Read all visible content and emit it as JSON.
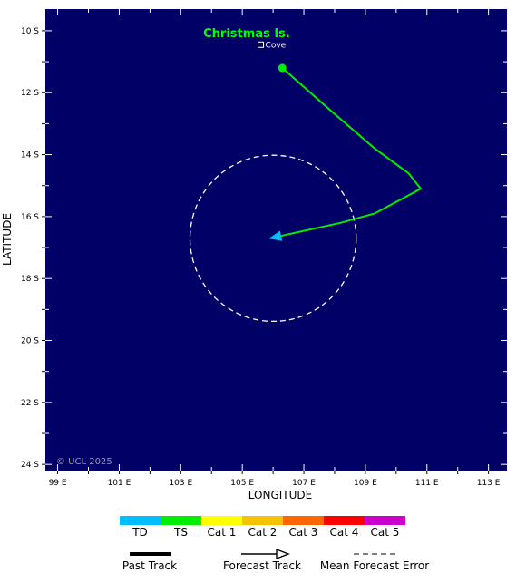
{
  "map": {
    "background_color": "#000066",
    "island_label": "Christmas Is.",
    "island_label_color": "#00ff00",
    "place_label": "Cove",
    "copyright": "© UCL 2025",
    "x_axis_label": "LONGITUDE",
    "y_axis_label": "LATITUDE",
    "lon_range": [
      98.6,
      113.6
    ],
    "lat_range": [
      -24.2,
      -9.3
    ],
    "lon_ticks": [
      "99 E",
      "101 E",
      "103 E",
      "105 E",
      "107 E",
      "109 E",
      "111 E",
      "113 E"
    ],
    "lat_ticks": [
      "10 S",
      "12 S",
      "14 S",
      "16 S",
      "18 S",
      "20 S",
      "22 S",
      "24 S"
    ],
    "place_marker": {
      "lon": 105.6,
      "lat": -10.45
    },
    "track": {
      "color": "#00ee00",
      "category": "TS",
      "points": [
        {
          "lon": 106.3,
          "lat": -11.2
        },
        {
          "lon": 107.9,
          "lat": -12.6
        },
        {
          "lon": 109.3,
          "lat": -13.8
        },
        {
          "lon": 110.4,
          "lat": -14.6
        },
        {
          "lon": 110.8,
          "lat": -15.1
        },
        {
          "lon": 109.3,
          "lat": -15.9
        },
        {
          "lon": 108.2,
          "lat": -16.2
        },
        {
          "lon": 105.9,
          "lat": -16.7
        }
      ],
      "start_marker": {
        "lon": 106.3,
        "lat": -11.2
      },
      "arrow_color": "#00bfff"
    },
    "error_cone": {
      "center_lon": 106.0,
      "center_lat": -16.7,
      "radius_deg": 2.7
    }
  },
  "legend": {
    "categories": [
      {
        "label": "TD",
        "color": "#00bfff"
      },
      {
        "label": "TS",
        "color": "#00ee00"
      },
      {
        "label": "Cat 1",
        "color": "#ffff00"
      },
      {
        "label": "Cat 2",
        "color": "#f5c200"
      },
      {
        "label": "Cat 3",
        "color": "#ff6600"
      },
      {
        "label": "Cat 4",
        "color": "#ff0000"
      },
      {
        "label": "Cat 5",
        "color": "#cc00cc"
      }
    ],
    "past_track_label": "Past Track",
    "forecast_track_label": "Forecast Track",
    "mean_error_label": "Mean Forecast Error"
  }
}
